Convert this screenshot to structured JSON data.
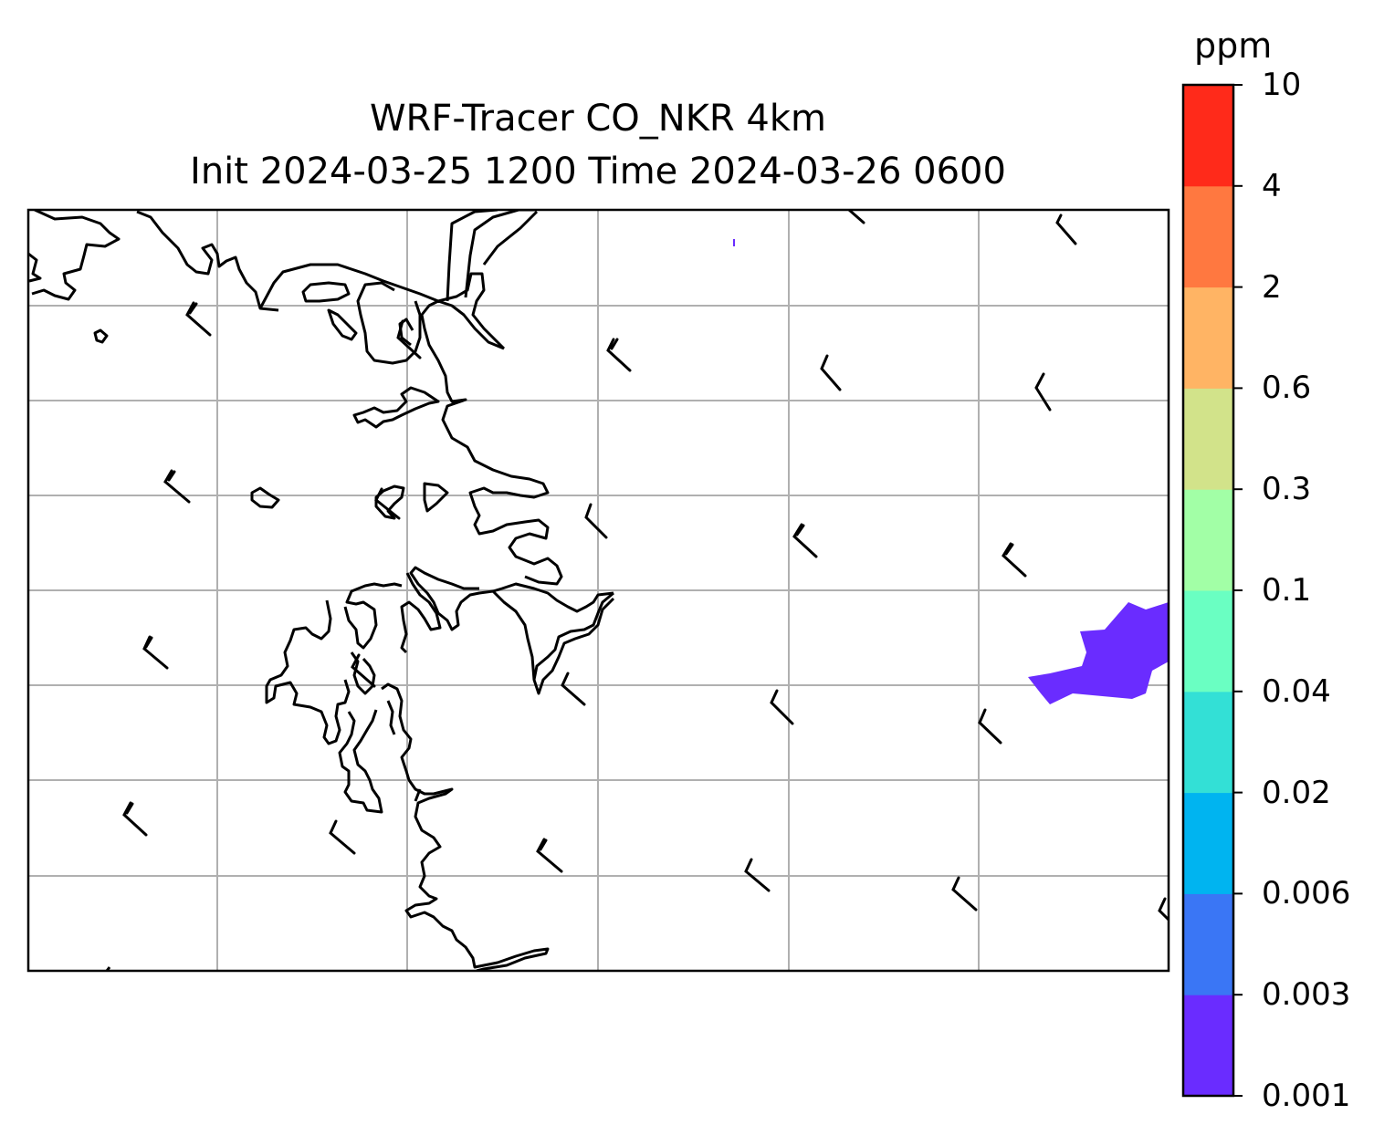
{
  "title": {
    "line1": "WRF-Tracer CO_NKR 4km",
    "line2": "Init 2024-03-25 1200 Time 2024-03-26 0600"
  },
  "colors": {
    "coastline": "#000000",
    "gridline": "#b0b0b0",
    "frame": "#000000",
    "wind_barb": "#000000",
    "plume": "#6a2cff"
  },
  "map": {
    "gridlines": true,
    "wind_barbs_icon": "wind-barb-icon",
    "plume_level": "0.001-0.003 ppm"
  },
  "colorbar": {
    "unit": "ppm",
    "levels": [
      "0.001",
      "0.003",
      "0.006",
      "0.02",
      "0.04",
      "0.1",
      "0.3",
      "0.6",
      "2",
      "4",
      "10"
    ],
    "colors": [
      "#6a2cff",
      "#3a76f5",
      "#00b4f0",
      "#33e0d6",
      "#6affc2",
      "#a2ffa6",
      "#d2e38a",
      "#ffb464",
      "#ff7840",
      "#ff2a1a"
    ]
  }
}
